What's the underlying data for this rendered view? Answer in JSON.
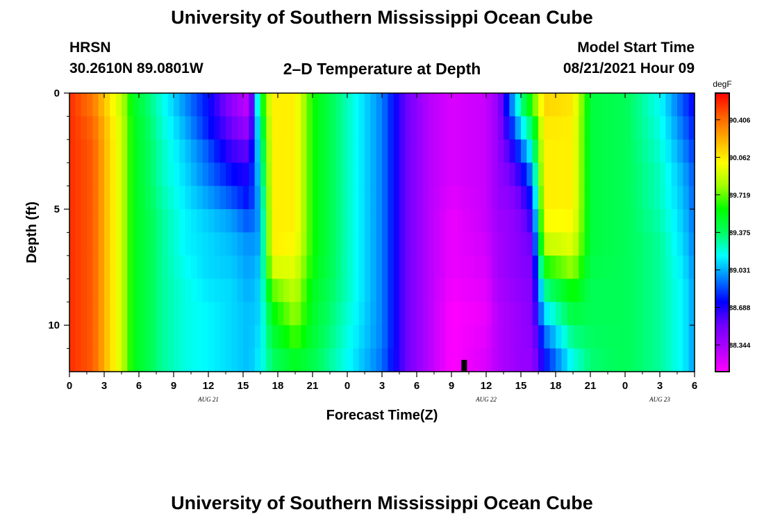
{
  "header": {
    "title": "University of Southern Mississippi Ocean Cube",
    "station": "HRSN",
    "coords": "30.2610N  89.0801W",
    "subtitle": "2–D Temperature at Depth",
    "model_label": "Model Start Time",
    "model_time": "08/21/2021 Hour 09"
  },
  "footer": {
    "title": "University of Southern Mississippi Ocean Cube"
  },
  "chart_data": {
    "type": "heatmap",
    "title": "2–D Temperature at Depth",
    "xlabel": "Forecast Time(Z)",
    "ylabel": "Depth (ft)",
    "units": "degF",
    "x_range_hours": [
      0,
      54
    ],
    "y_range_ft": [
      0,
      12
    ],
    "y_inverted": true,
    "x_tick_labels": [
      "0",
      "3",
      "6",
      "9",
      "12",
      "15",
      "18",
      "21",
      "0",
      "3",
      "6",
      "9",
      "12",
      "15",
      "18",
      "21",
      "0",
      "3",
      "6"
    ],
    "y_ticks": [
      0,
      5,
      10
    ],
    "y_tick_labels": [
      "0",
      "5",
      "10"
    ],
    "date_labels": [
      {
        "hour": 12,
        "text": "AUG  21"
      },
      {
        "hour": 36,
        "text": "AUG  22"
      },
      {
        "hour": 51,
        "text": "AUG  23"
      }
    ],
    "colorbar": {
      "labels": [
        "90.406",
        "90.062",
        "89.719",
        "89.375",
        "89.031",
        "88.688",
        "88.344"
      ],
      "range": [
        88.1,
        90.65
      ],
      "colors": [
        "#ff00ff",
        "#b000ff",
        "#7000ff",
        "#0000ff",
        "#0080ff",
        "#00ffff",
        "#00ff60",
        "#00ff00",
        "#a0ff00",
        "#ffff00",
        "#ffb000",
        "#ff6000",
        "#ff0000"
      ]
    },
    "current_time_hour": 34.1,
    "depths_ft": [
      0,
      1,
      2,
      3,
      4,
      5,
      6,
      7,
      8,
      9,
      10,
      11,
      12
    ],
    "profiles": [
      {
        "h": 0,
        "v": [
          90.55,
          90.55,
          90.55,
          90.55,
          90.55,
          90.55,
          90.55,
          90.55,
          90.55,
          90.55,
          90.55,
          90.55,
          90.55
        ]
      },
      {
        "h": 2,
        "v": [
          90.35,
          90.4,
          90.45,
          90.45,
          90.45,
          90.45,
          90.45,
          90.45,
          90.45,
          90.45,
          90.45,
          90.45,
          90.45
        ]
      },
      {
        "h": 4.5,
        "v": [
          89.85,
          89.9,
          89.9,
          89.9,
          89.9,
          89.9,
          89.9,
          89.9,
          89.9,
          89.9,
          89.9,
          89.9,
          89.9
        ]
      },
      {
        "h": 5.5,
        "v": [
          89.5,
          89.55,
          89.55,
          89.55,
          89.55,
          89.55,
          89.55,
          89.55,
          89.55,
          89.55,
          89.55,
          89.55,
          89.55
        ]
      },
      {
        "h": 8,
        "v": [
          89.2,
          89.2,
          89.25,
          89.25,
          89.25,
          89.3,
          89.3,
          89.3,
          89.3,
          89.3,
          89.3,
          89.3,
          89.3
        ]
      },
      {
        "h": 10,
        "v": [
          88.95,
          89.0,
          89.05,
          89.1,
          89.1,
          89.15,
          89.15,
          89.15,
          89.2,
          89.2,
          89.2,
          89.2,
          89.2
        ]
      },
      {
        "h": 12,
        "v": [
          88.8,
          88.7,
          88.85,
          88.9,
          88.95,
          89.05,
          89.1,
          89.1,
          89.1,
          89.15,
          89.15,
          89.15,
          89.15
        ]
      },
      {
        "h": 14,
        "v": [
          88.35,
          88.5,
          88.55,
          88.7,
          88.8,
          88.95,
          89.05,
          89.05,
          89.1,
          89.1,
          89.1,
          89.1,
          89.1
        ]
      },
      {
        "h": 15.5,
        "v": [
          88.2,
          88.3,
          88.45,
          88.65,
          88.7,
          88.8,
          88.95,
          89.0,
          89.0,
          89.05,
          89.05,
          89.05,
          89.05
        ]
      },
      {
        "h": 16.5,
        "v": [
          89.55,
          89.4,
          89.25,
          89.2,
          89.1,
          89.05,
          89.0,
          89.05,
          89.1,
          89.1,
          89.1,
          89.15,
          89.15
        ]
      },
      {
        "h": 17.5,
        "v": [
          90.05,
          90.05,
          90.05,
          90.05,
          90.05,
          90.05,
          90.05,
          90.05,
          89.8,
          89.6,
          89.5,
          89.4,
          89.35
        ]
      },
      {
        "h": 19.5,
        "v": [
          90.05,
          90.05,
          90.05,
          90.05,
          90.05,
          90.05,
          90.05,
          90.0,
          89.9,
          89.85,
          89.75,
          89.6,
          89.45
        ]
      },
      {
        "h": 21,
        "v": [
          89.6,
          89.6,
          89.6,
          89.6,
          89.6,
          89.6,
          89.6,
          89.6,
          89.55,
          89.5,
          89.5,
          89.45,
          89.4
        ]
      },
      {
        "h": 24,
        "v": [
          89.25,
          89.25,
          89.25,
          89.25,
          89.25,
          89.25,
          89.25,
          89.25,
          89.25,
          89.25,
          89.2,
          89.2,
          89.15
        ]
      },
      {
        "h": 27,
        "v": [
          88.95,
          88.95,
          88.95,
          88.95,
          88.95,
          88.95,
          88.95,
          88.95,
          88.95,
          88.95,
          88.95,
          88.95,
          88.9
        ]
      },
      {
        "h": 29,
        "v": [
          88.55,
          88.55,
          88.55,
          88.55,
          88.55,
          88.55,
          88.55,
          88.55,
          88.55,
          88.55,
          88.55,
          88.55,
          88.55
        ]
      },
      {
        "h": 31,
        "v": [
          88.3,
          88.3,
          88.3,
          88.3,
          88.3,
          88.3,
          88.3,
          88.3,
          88.3,
          88.3,
          88.3,
          88.3,
          88.3
        ]
      },
      {
        "h": 33,
        "v": [
          88.2,
          88.2,
          88.2,
          88.2,
          88.2,
          88.15,
          88.15,
          88.15,
          88.15,
          88.1,
          88.1,
          88.1,
          88.1
        ]
      },
      {
        "h": 36,
        "v": [
          88.25,
          88.25,
          88.25,
          88.25,
          88.25,
          88.25,
          88.25,
          88.2,
          88.2,
          88.15,
          88.15,
          88.2,
          88.2
        ]
      },
      {
        "h": 37,
        "v": [
          88.4,
          88.4,
          88.4,
          88.4,
          88.4,
          88.4,
          88.35,
          88.35,
          88.35,
          88.3,
          88.3,
          88.3,
          88.3
        ]
      },
      {
        "h": 38,
        "v": [
          88.9,
          88.8,
          88.65,
          88.55,
          88.45,
          88.4,
          88.4,
          88.4,
          88.4,
          88.35,
          88.35,
          88.35,
          88.35
        ]
      },
      {
        "h": 39,
        "v": [
          89.4,
          89.2,
          89.0,
          88.75,
          88.6,
          88.5,
          88.45,
          88.45,
          88.45,
          88.4,
          88.4,
          88.4,
          88.4
        ]
      },
      {
        "h": 40,
        "v": [
          89.8,
          89.5,
          89.3,
          89.1,
          88.9,
          88.75,
          88.6,
          88.5,
          88.45,
          88.45,
          88.45,
          88.4,
          88.4
        ]
      },
      {
        "h": 41,
        "v": [
          90.15,
          90.1,
          90.05,
          90.05,
          90.05,
          90.05,
          89.95,
          89.8,
          89.4,
          89.2,
          89.0,
          88.8,
          88.7
        ]
      },
      {
        "h": 43.5,
        "v": [
          90.1,
          90.05,
          90.05,
          90.05,
          90.05,
          90.05,
          90.0,
          89.9,
          89.7,
          89.5,
          89.4,
          89.25,
          89.15
        ]
      },
      {
        "h": 45,
        "v": [
          89.45,
          89.45,
          89.45,
          89.45,
          89.45,
          89.45,
          89.45,
          89.45,
          89.4,
          89.4,
          89.4,
          89.35,
          89.35
        ]
      },
      {
        "h": 48,
        "v": [
          89.4,
          89.4,
          89.4,
          89.4,
          89.4,
          89.4,
          89.4,
          89.4,
          89.4,
          89.4,
          89.4,
          89.4,
          89.4
        ]
      },
      {
        "h": 51,
        "v": [
          89.15,
          89.2,
          89.2,
          89.25,
          89.25,
          89.25,
          89.3,
          89.3,
          89.3,
          89.3,
          89.3,
          89.3,
          89.3
        ]
      },
      {
        "h": 53,
        "v": [
          88.85,
          88.9,
          88.95,
          89.0,
          89.05,
          89.05,
          89.1,
          89.1,
          89.15,
          89.15,
          89.15,
          89.15,
          89.15
        ]
      },
      {
        "h": 54,
        "v": [
          88.7,
          88.75,
          88.8,
          88.85,
          88.9,
          88.9,
          88.95,
          88.95,
          89.0,
          89.0,
          89.0,
          89.0,
          89.0
        ]
      }
    ]
  }
}
